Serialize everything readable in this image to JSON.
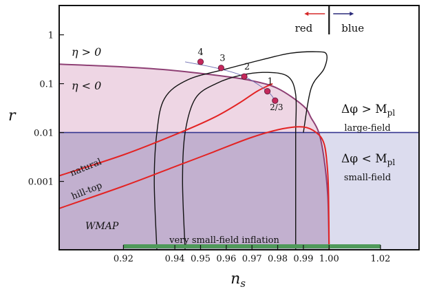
{
  "chart_data": {
    "type": "line",
    "xlabel": "n",
    "xlabel_sub": "s",
    "ylabel": "r",
    "xlim": [
      0.895,
      1.035
    ],
    "ylim_log10": [
      -4.4,
      0.6
    ],
    "log_y": true,
    "x_ticks": [
      {
        "value": 0.92,
        "label": "0.92"
      },
      {
        "value": 0.94,
        "label": "0.94"
      },
      {
        "value": 0.95,
        "label": "0.95"
      },
      {
        "value": 0.96,
        "label": "0.96"
      },
      {
        "value": 0.97,
        "label": "0.97"
      },
      {
        "value": 0.98,
        "label": "0.98"
      },
      {
        "value": 0.99,
        "label": "0.99"
      },
      {
        "value": 1.0,
        "label": "1.00"
      },
      {
        "value": 1.02,
        "label": "1.02"
      }
    ],
    "y_ticks": [
      {
        "value": 1,
        "label": "1"
      },
      {
        "value": 0.1,
        "label": "0.1"
      },
      {
        "value": 0.01,
        "label": "0.01"
      },
      {
        "value": 0.001,
        "label": "0.001"
      }
    ],
    "regions": {
      "eta_boundary": [
        [
          0.895,
          0.25
        ],
        [
          0.92,
          0.22
        ],
        [
          0.94,
          0.185
        ],
        [
          0.96,
          0.14
        ],
        [
          0.97,
          0.115
        ],
        [
          0.98,
          0.08
        ],
        [
          0.99,
          0.035
        ],
        [
          0.993,
          0.02
        ],
        [
          0.996,
          0.01
        ],
        [
          0.998,
          0.003
        ],
        [
          0.9995,
          0.0005
        ],
        [
          1.0,
          4e-05
        ]
      ],
      "lyth_bound_r": 0.01,
      "labels": {
        "eta_pos": "η > 0",
        "eta_neg": "η < 0",
        "large_field_main": "Δφ > M",
        "large_field_sub": "pl",
        "large_field_caption": "large-field",
        "small_field_main": "Δφ < M",
        "small_field_sub": "pl",
        "small_field_caption": "small-field",
        "wmap": "WMAP",
        "red": "red",
        "blue": "blue",
        "very_small_field": "very small-field inflation"
      }
    },
    "wmap_contours": [
      [
        [
          0.933,
          4e-05
        ],
        [
          0.932,
          0.001
        ],
        [
          0.933,
          0.01
        ],
        [
          0.936,
          0.05
        ],
        [
          0.945,
          0.12
        ],
        [
          0.96,
          0.2
        ],
        [
          0.975,
          0.32
        ],
        [
          0.985,
          0.42
        ],
        [
          0.995,
          0.45
        ],
        [
          0.999,
          0.4
        ],
        [
          0.998,
          0.2
        ],
        [
          0.993,
          0.08
        ],
        [
          0.99,
          0.01
        ]
      ],
      [
        [
          0.944,
          4e-05
        ],
        [
          0.943,
          0.001
        ],
        [
          0.944,
          0.01
        ],
        [
          0.948,
          0.05
        ],
        [
          0.956,
          0.1
        ],
        [
          0.966,
          0.15
        ],
        [
          0.976,
          0.17
        ],
        [
          0.984,
          0.14
        ],
        [
          0.987,
          0.06
        ],
        [
          0.987,
          0.01
        ],
        [
          0.987,
          0.001
        ],
        [
          0.987,
          4e-05
        ]
      ]
    ],
    "series": [
      {
        "name": "natural",
        "values": [
          [
            0.895,
            0.0013
          ],
          [
            0.92,
            0.0035
          ],
          [
            0.94,
            0.009
          ],
          [
            0.955,
            0.02
          ],
          [
            0.965,
            0.04
          ],
          [
            0.972,
            0.07
          ],
          [
            0.978,
            0.1
          ]
        ]
      },
      {
        "name": "hill-top",
        "values": [
          [
            0.895,
            0.00028
          ],
          [
            0.92,
            0.0008
          ],
          [
            0.94,
            0.002
          ],
          [
            0.955,
            0.004
          ],
          [
            0.97,
            0.008
          ],
          [
            0.982,
            0.012
          ],
          [
            0.99,
            0.013
          ],
          [
            0.995,
            0.01
          ],
          [
            0.998,
            0.006
          ],
          [
            0.9993,
            0.002
          ],
          [
            0.9998,
            0.0005
          ],
          [
            1.0,
            4e-05
          ]
        ]
      },
      {
        "name": "",
        "values": [
          [
            0.944,
            0.28
          ],
          [
            0.956,
            0.21
          ],
          [
            0.967,
            0.14
          ],
          [
            0.976,
            0.07
          ],
          [
            0.979,
            0.045
          ]
        ]
      }
    ],
    "points": [
      {
        "label": "4",
        "x": 0.95,
        "y": 0.28
      },
      {
        "label": "3",
        "x": 0.958,
        "y": 0.21
      },
      {
        "label": "2",
        "x": 0.967,
        "y": 0.14
      },
      {
        "label": "1",
        "x": 0.976,
        "y": 0.07
      },
      {
        "label": "2/3",
        "x": 0.979,
        "y": 0.045
      }
    ],
    "colors": {
      "eta_fill": "#eed6e4",
      "eta_line": "#8e3f74",
      "small_field_fill": "#dcdcee",
      "overlap_fill": "#c2b0cf",
      "bound_line": "#35358f",
      "red_curve": "#e32323",
      "points": "#c4285b",
      "contour": "#111111",
      "bar": "#4f9a5a",
      "red_arrow": "#d62828",
      "blue_arrow": "#2a2a7a"
    }
  }
}
